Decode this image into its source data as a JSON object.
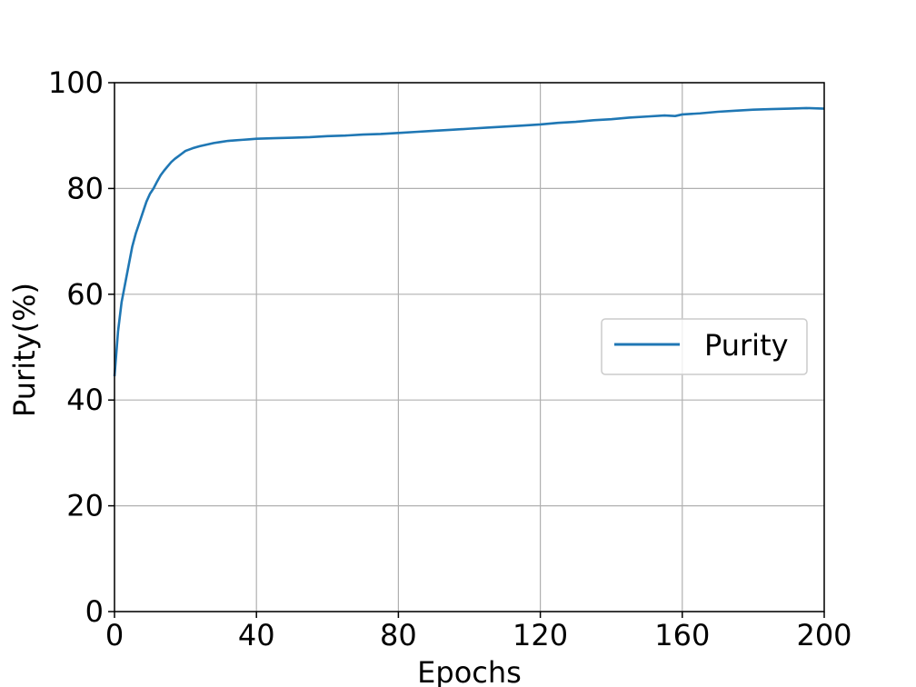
{
  "chart_data": {
    "type": "line",
    "xlabel": "Epochs",
    "ylabel": "Purity(%)",
    "xlim": [
      0,
      200
    ],
    "ylim": [
      0,
      100
    ],
    "xticks": [
      0,
      40,
      80,
      120,
      160,
      200
    ],
    "yticks": [
      0,
      20,
      40,
      60,
      80,
      100
    ],
    "xtick_labels": [
      "0",
      "40",
      "80",
      "120",
      "160",
      "200"
    ],
    "ytick_labels": [
      "0",
      "20",
      "40",
      "60",
      "80",
      "100"
    ],
    "grid": true,
    "legend": {
      "placement": "center-right",
      "entries": [
        "Purity"
      ]
    },
    "series": [
      {
        "name": "Purity",
        "color": "#1f77b4",
        "x": [
          0,
          1,
          2,
          3,
          4,
          5,
          6,
          7,
          8,
          9,
          10,
          11,
          12,
          13,
          14,
          15,
          16,
          17,
          18,
          19,
          20,
          22,
          24,
          26,
          28,
          30,
          32,
          34,
          36,
          38,
          40,
          45,
          50,
          55,
          60,
          65,
          70,
          75,
          80,
          85,
          90,
          95,
          100,
          105,
          110,
          115,
          120,
          125,
          130,
          135,
          140,
          145,
          150,
          155,
          158,
          160,
          165,
          170,
          175,
          180,
          185,
          190,
          195,
          200
        ],
        "values": [
          44.5,
          53,
          58.5,
          62,
          65.5,
          69,
          71.5,
          73.5,
          75.5,
          77.5,
          79,
          80,
          81.3,
          82.5,
          83.4,
          84.2,
          85,
          85.6,
          86.1,
          86.6,
          87.1,
          87.6,
          88.0,
          88.3,
          88.6,
          88.8,
          89.0,
          89.1,
          89.2,
          89.3,
          89.4,
          89.5,
          89.6,
          89.7,
          89.9,
          90.0,
          90.2,
          90.3,
          90.5,
          90.7,
          90.9,
          91.1,
          91.3,
          91.5,
          91.7,
          91.9,
          92.1,
          92.4,
          92.6,
          92.9,
          93.1,
          93.4,
          93.6,
          93.8,
          93.7,
          94.0,
          94.2,
          94.5,
          94.7,
          94.9,
          95.0,
          95.1,
          95.2,
          95.1
        ]
      }
    ]
  }
}
